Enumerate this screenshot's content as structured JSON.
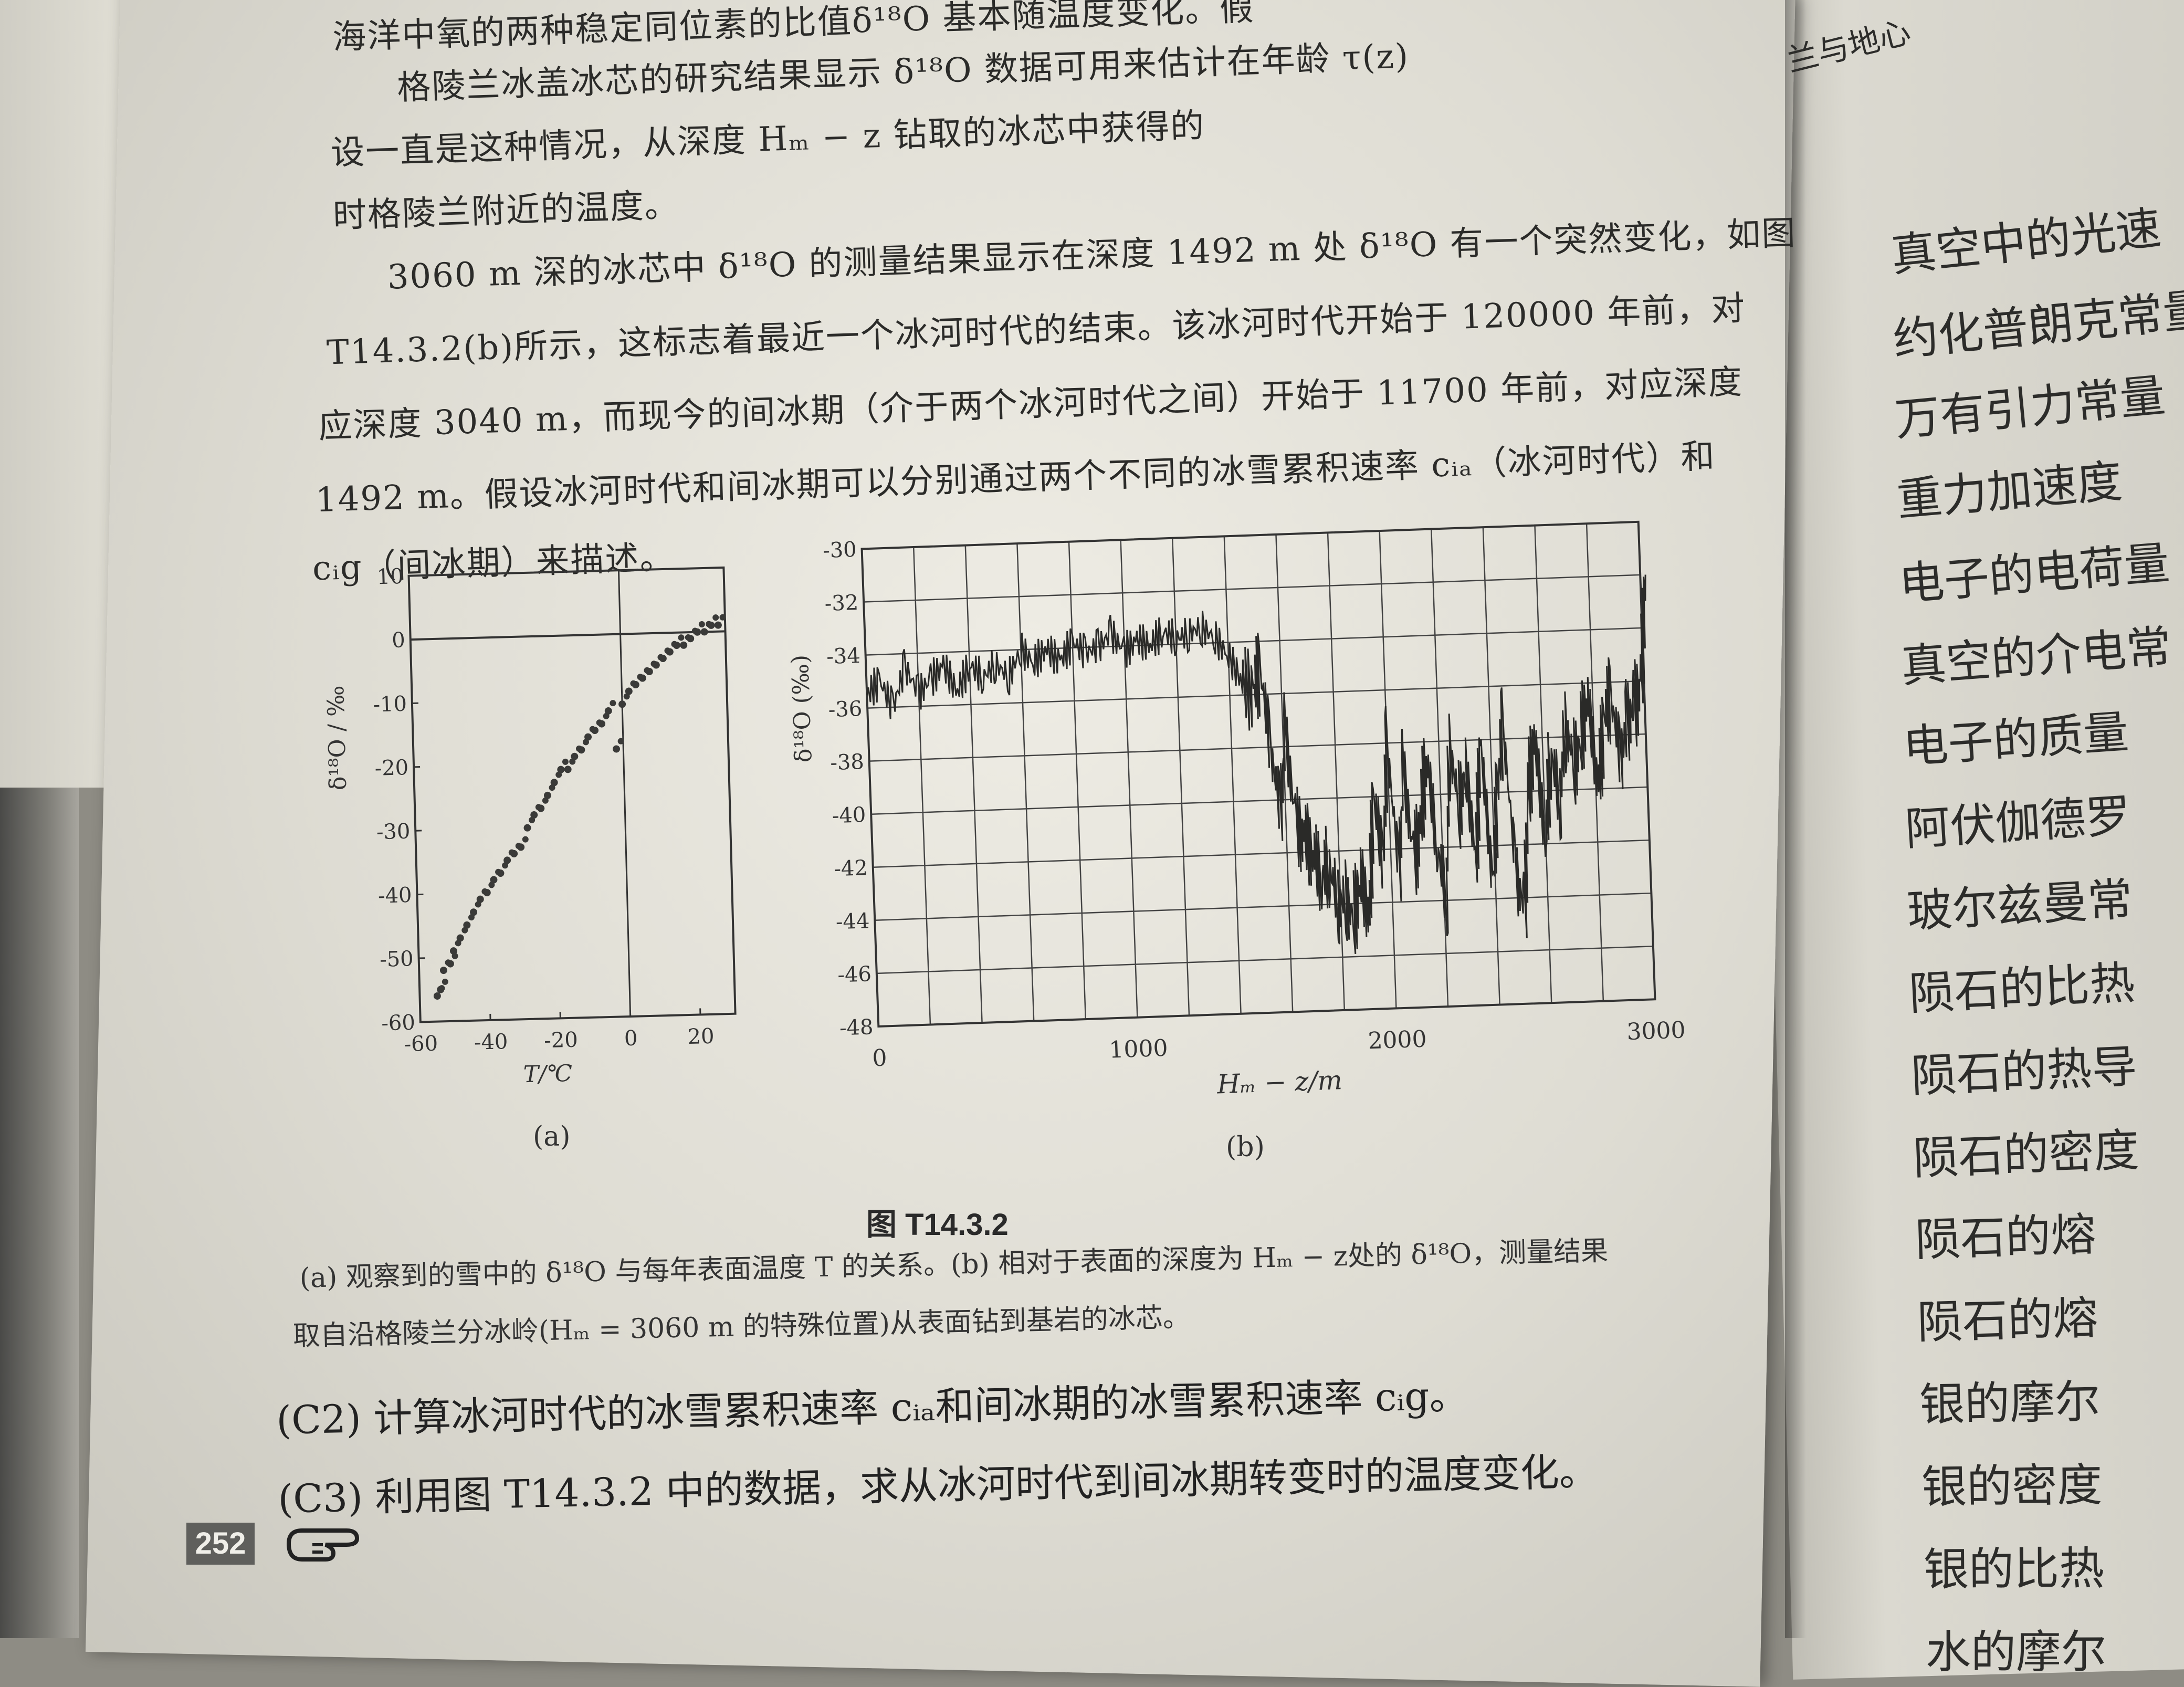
{
  "left_page": {
    "paragraphs": [
      "海洋中氧的两种稳定同位素的比值δ¹⁸O 基本随温度变化。假",
      "格陵兰冰盖冰芯的研究结果显示 δ¹⁸O 数据可用来估计在年龄 τ(z)",
      "设一直是这种情况，从深度 Hₘ − z 钻取的冰芯中获得的",
      "时格陵兰附近的温度。",
      "3060 m 深的冰芯中 δ¹⁸O 的测量结果显示在深度 1492 m 处 δ¹⁸O 有一个突然变化，如图",
      "T14.3.2(b)所示，这标志着最近一个冰河时代的结束。该冰河时代开始于 120000 年前，对",
      "应深度 3040 m，而现今的间冰期（介于两个冰河时代之间）开始于 11700 年前，对应深度",
      "1492 m。假设冰河时代和间冰期可以分别通过两个不同的冰雪累积速率 cᵢₐ（冰河时代）和",
      "cᵢg（间冰期）来描述。"
    ],
    "figure": {
      "panel_a_label": "(a)",
      "panel_b_label": "(b)",
      "title": "图 T14.3.2",
      "caption_line1": "(a) 观察到的雪中的 δ¹⁸O 与每年表面温度 T 的关系。(b) 相对于表面的深度为 Hₘ − z处的 δ¹⁸O，测量结果",
      "caption_line2": "取自沿格陵兰分冰岭(Hₘ = 3060 m 的特殊位置)从表面钻到基岩的冰芯。"
    },
    "questions": [
      "(C2) 计算冰河时代的冰雪累积速率 cᵢₐ和间冰期的冰雪累积速率 cᵢg。",
      "(C3) 利用图 T14.3.2 中的数据，求从冰河时代到间冰期转变时的温度变化。"
    ],
    "page_number": "252",
    "hand_icon": "pointing-hand-icon"
  },
  "right_page": {
    "header_fragment": "兰与地心",
    "items": [
      "真空中的光速",
      "约化普朗克常量",
      "万有引力常量",
      "重力加速度",
      "电子的电荷量",
      "真空的介电常",
      "电子的质量",
      "阿伏伽德罗",
      "玻尔兹曼常",
      "陨石的比热",
      "陨石的热导",
      "陨石的密度",
      "陨石的熔",
      "陨石的熔",
      "银的摩尔",
      "银的密度",
      "银的比热",
      "水的摩尔"
    ]
  },
  "chart_data": [
    {
      "type": "scatter",
      "xlabel": "T/℃",
      "ylabel": "δ¹⁸O / ‰",
      "xlim": [
        -60,
        30
      ],
      "ylim": [
        -60,
        10
      ],
      "xticks": [
        "-60",
        "-40",
        "-20",
        "0",
        "20"
      ],
      "yticks": [
        "10",
        "0",
        "-10",
        "-20",
        "-30",
        "-40",
        "-50",
        "-60"
      ],
      "reference_lines": {
        "horizontal_y": 0,
        "vertical_x": 0
      },
      "x": [
        -55,
        -54,
        -53,
        -51,
        -50,
        -48,
        -46,
        -44,
        -42,
        -40,
        -38,
        -36,
        -34,
        -32,
        -30,
        -28,
        -26,
        -24,
        -22,
        -20,
        -18,
        -16,
        -14,
        -12,
        -10,
        -8,
        -6,
        -4,
        -2,
        0,
        2,
        4,
        6,
        8,
        10,
        12,
        14,
        16,
        18,
        20,
        22,
        24,
        26,
        28
      ],
      "y": [
        -56,
        -55,
        -52,
        -51,
        -49,
        -47,
        -45,
        -43,
        -41,
        -40,
        -38,
        -37,
        -35,
        -34,
        -33,
        -30,
        -28,
        -27,
        -25,
        -23,
        -21,
        -21,
        -19,
        -18,
        -16,
        -15,
        -14,
        -12,
        -18,
        -11,
        -9,
        -8,
        -7,
        -6,
        -5,
        -4,
        -3,
        -2,
        -2,
        -1,
        0,
        0,
        1,
        1
      ]
    },
    {
      "type": "line",
      "xlabel": "Hₘ − z/m",
      "ylabel": "δ¹⁸O (‰)",
      "xlim": [
        0,
        3000
      ],
      "ylim": [
        -48,
        -30
      ],
      "xticks": [
        "0",
        "1000",
        "2000",
        "3000"
      ],
      "yticks": [
        "-30",
        "-32",
        "-34",
        "-36",
        "-38",
        "-40",
        "-42",
        "-44",
        "-46",
        "-48"
      ],
      "grid": true,
      "x": [
        0,
        50,
        100,
        150,
        200,
        250,
        300,
        350,
        400,
        450,
        500,
        550,
        600,
        650,
        700,
        750,
        800,
        850,
        900,
        950,
        1000,
        1050,
        1100,
        1150,
        1200,
        1250,
        1300,
        1350,
        1400,
        1450,
        1492,
        1520,
        1550,
        1580,
        1610,
        1640,
        1670,
        1700,
        1730,
        1760,
        1790,
        1820,
        1850,
        1880,
        1910,
        1940,
        1970,
        2000,
        2030,
        2060,
        2090,
        2120,
        2150,
        2180,
        2210,
        2240,
        2270,
        2300,
        2330,
        2360,
        2390,
        2420,
        2450,
        2480,
        2510,
        2540,
        2570,
        2600,
        2630,
        2660,
        2690,
        2720,
        2750,
        2780,
        2810,
        2840,
        2870,
        2900,
        2930,
        2960,
        2990,
        3020
      ],
      "y": [
        -35.5,
        -35,
        -36,
        -34.5,
        -35.5,
        -35,
        -34.5,
        -35.5,
        -34.5,
        -35,
        -34.5,
        -35,
        -34,
        -34.5,
        -34,
        -34.5,
        -33.8,
        -34.2,
        -34,
        -33.5,
        -34.2,
        -33.8,
        -34,
        -33.5,
        -33.8,
        -33.6,
        -33.4,
        -33.8,
        -34.5,
        -35.5,
        -36,
        -35,
        -38,
        -40.5,
        -37.5,
        -41,
        -41.5,
        -42,
        -43,
        -42.5,
        -44,
        -43.8,
        -44.5,
        -43,
        -44.5,
        -40,
        -42.5,
        -38,
        -43,
        -39,
        -42.5,
        -41,
        -38.5,
        -42,
        -44,
        -38,
        -40.5,
        -39,
        -42.5,
        -38,
        -43.5,
        -40,
        -37.5,
        -43,
        -44.5,
        -40,
        -38,
        -42,
        -38.5,
        -40.5,
        -37.5,
        -39,
        -38,
        -36.5,
        -40,
        -37.5,
        -36.5,
        -39,
        -37.5,
        -37,
        -36,
        -32
      ]
    }
  ]
}
